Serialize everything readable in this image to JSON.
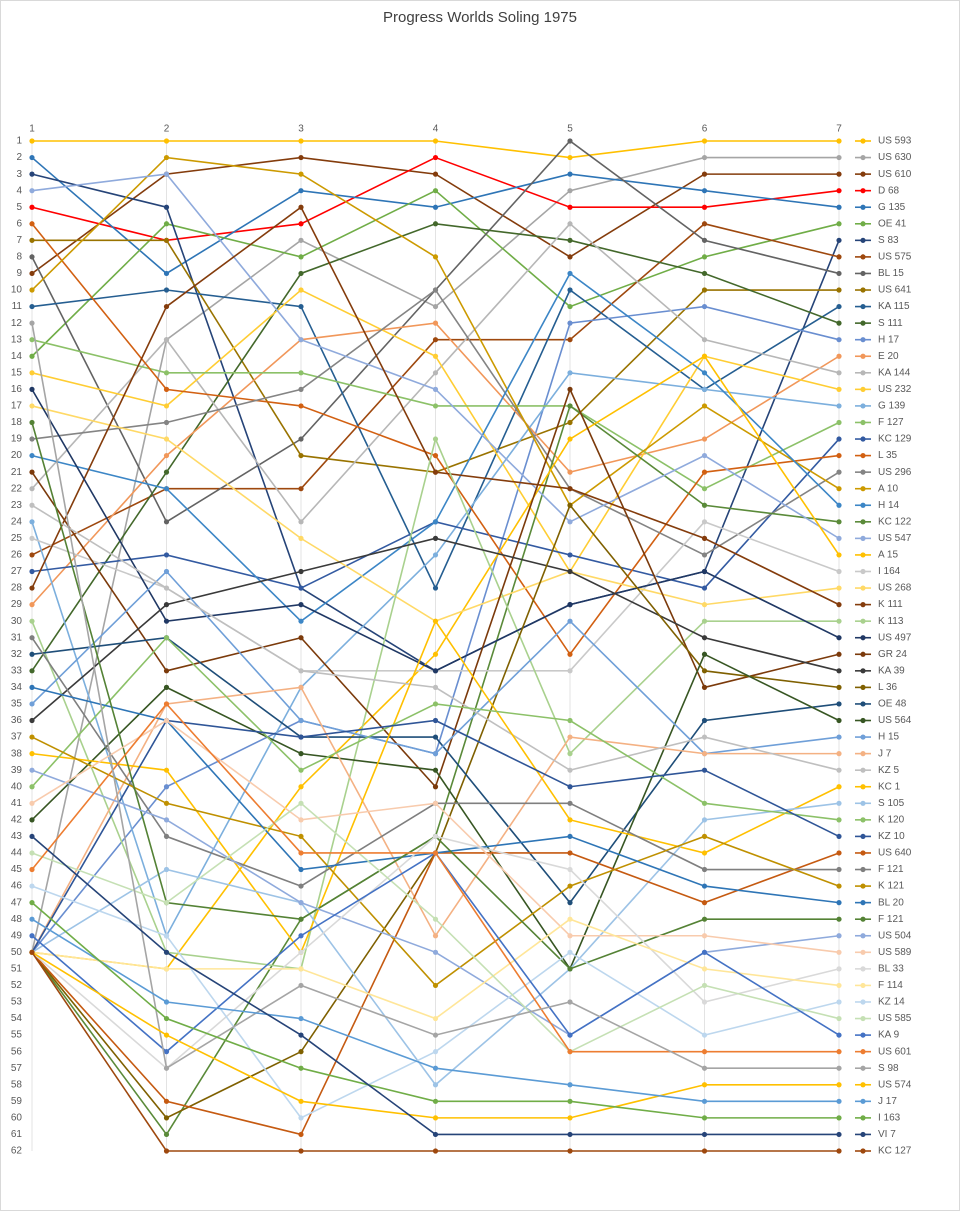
{
  "chart_data": {
    "type": "bump",
    "title": "Progress Worlds Soling 1975",
    "categories": [
      "1",
      "2",
      "3",
      "4",
      "5",
      "6",
      "7"
    ],
    "ylim": [
      62,
      1
    ],
    "yticks": [
      1,
      2,
      3,
      4,
      5,
      6,
      7,
      8,
      9,
      10,
      11,
      12,
      13,
      14,
      15,
      16,
      17,
      18,
      19,
      20,
      21,
      22,
      23,
      24,
      25,
      26,
      27,
      28,
      29,
      30,
      31,
      32,
      33,
      34,
      35,
      36,
      37,
      38,
      39,
      40,
      41,
      42,
      43,
      44,
      45,
      46,
      47,
      48,
      49,
      50,
      51,
      52,
      53,
      54,
      55,
      56,
      57,
      58,
      59,
      60,
      61,
      62
    ],
    "grid": true,
    "series": [
      {
        "name": "US 593",
        "color": "#FFC000",
        "values": [
          1,
          1,
          1,
          1,
          2,
          1,
          1
        ]
      },
      {
        "name": "US 630",
        "color": "#A5A5A5",
        "values": [
          50,
          13,
          7,
          11,
          4,
          2,
          2
        ]
      },
      {
        "name": "US 610",
        "color": "#843C0C",
        "values": [
          9,
          3,
          2,
          3,
          8,
          3,
          3
        ]
      },
      {
        "name": "D 68",
        "color": "#FF0000",
        "values": [
          5,
          7,
          6,
          2,
          5,
          5,
          4
        ]
      },
      {
        "name": "G 135",
        "color": "#2E75B6",
        "values": [
          2,
          9,
          4,
          5,
          3,
          4,
          5
        ]
      },
      {
        "name": "OE 41",
        "color": "#70AD47",
        "values": [
          14,
          6,
          8,
          4,
          11,
          8,
          6
        ]
      },
      {
        "name": "S 83",
        "color": "#264478",
        "values": [
          3,
          5,
          28,
          33,
          29,
          27,
          7
        ]
      },
      {
        "name": "US 575",
        "color": "#9E480E",
        "values": [
          26,
          22,
          22,
          13,
          13,
          6,
          8
        ]
      },
      {
        "name": "BL 15",
        "color": "#636363",
        "values": [
          8,
          24,
          19,
          10,
          1,
          7,
          9
        ]
      },
      {
        "name": "US 641",
        "color": "#997300",
        "values": [
          7,
          7,
          20,
          21,
          18,
          10,
          10
        ]
      },
      {
        "name": "KA 115",
        "color": "#255E91",
        "values": [
          11,
          10,
          11,
          28,
          10,
          16,
          11
        ]
      },
      {
        "name": "S 111",
        "color": "#43682B",
        "values": [
          33,
          21,
          9,
          6,
          7,
          9,
          12
        ]
      },
      {
        "name": "H 17",
        "color": "#698ED0",
        "values": [
          50,
          40,
          36,
          38,
          12,
          11,
          13
        ]
      },
      {
        "name": "E 20",
        "color": "#F1975A",
        "values": [
          29,
          20,
          13,
          12,
          21,
          19,
          14
        ]
      },
      {
        "name": "KA 144",
        "color": "#B7B7B7",
        "values": [
          22,
          13,
          24,
          15,
          6,
          13,
          15
        ]
      },
      {
        "name": "US 232",
        "color": "#FFCD33",
        "values": [
          15,
          17,
          10,
          14,
          27,
          14,
          16
        ]
      },
      {
        "name": "G 139",
        "color": "#7CAFDD",
        "values": [
          24,
          49,
          34,
          26,
          15,
          16,
          17
        ]
      },
      {
        "name": "F 127",
        "color": "#8CC168",
        "values": [
          13,
          15,
          15,
          17,
          17,
          22,
          18
        ]
      },
      {
        "name": "KC 129",
        "color": "#335AA1",
        "values": [
          27,
          26,
          28,
          24,
          26,
          28,
          19
        ]
      },
      {
        "name": "L 35",
        "color": "#D26012",
        "values": [
          6,
          16,
          17,
          20,
          32,
          21,
          20
        ]
      },
      {
        "name": "US 296",
        "color": "#848484",
        "values": [
          19,
          18,
          16,
          10,
          22,
          26,
          21
        ]
      },
      {
        "name": "A 10",
        "color": "#CC9A00",
        "values": [
          10,
          2,
          3,
          8,
          23,
          17,
          22
        ]
      },
      {
        "name": "H 14",
        "color": "#3C86C6",
        "values": [
          20,
          22,
          30,
          24,
          9,
          15,
          23
        ]
      },
      {
        "name": "KC 122",
        "color": "#5A8A39",
        "values": [
          50,
          61,
          48,
          43,
          17,
          23,
          24
        ]
      },
      {
        "name": "US 547",
        "color": "#8FAADC",
        "values": [
          4,
          3,
          13,
          16,
          24,
          20,
          25
        ]
      },
      {
        "name": "A 15",
        "color": "#FFC000",
        "values": [
          50,
          51,
          40,
          32,
          19,
          14,
          26
        ]
      },
      {
        "name": "I 164",
        "color": "#C9C9C9",
        "values": [
          25,
          28,
          33,
          33,
          33,
          24,
          27
        ]
      },
      {
        "name": "US 268",
        "color": "#FFD966",
        "values": [
          17,
          19,
          25,
          30,
          27,
          29,
          28
        ]
      },
      {
        "name": "K 111",
        "color": "#843C0C",
        "values": [
          28,
          11,
          5,
          21,
          22,
          25,
          29
        ]
      },
      {
        "name": "K 113",
        "color": "#A9D18E",
        "values": [
          30,
          50,
          51,
          19,
          38,
          30,
          30
        ]
      },
      {
        "name": "US 497",
        "color": "#203864",
        "values": [
          16,
          30,
          29,
          33,
          29,
          27,
          31
        ]
      },
      {
        "name": "GR 24",
        "color": "#7B3A0B",
        "values": [
          21,
          33,
          31,
          40,
          16,
          34,
          32
        ]
      },
      {
        "name": "KA 39",
        "color": "#3A3A3A",
        "values": [
          36,
          29,
          27,
          25,
          27,
          31,
          33
        ]
      },
      {
        "name": "L 36",
        "color": "#7F6000",
        "values": [
          50,
          60,
          56,
          44,
          23,
          33,
          34
        ]
      },
      {
        "name": "OE 48",
        "color": "#1F4E79",
        "values": [
          32,
          31,
          37,
          37,
          47,
          36,
          35
        ]
      },
      {
        "name": "US 564",
        "color": "#375623",
        "values": [
          42,
          34,
          38,
          39,
          51,
          32,
          36
        ]
      },
      {
        "name": "H 15",
        "color": "#6F9FD8",
        "values": [
          35,
          27,
          36,
          38,
          30,
          38,
          37
        ]
      },
      {
        "name": "J 7",
        "color": "#F4B183",
        "values": [
          50,
          35,
          34,
          49,
          37,
          38,
          38
        ]
      },
      {
        "name": "KZ 5",
        "color": "#BFBFBF",
        "values": [
          23,
          28,
          33,
          34,
          39,
          37,
          39
        ]
      },
      {
        "name": "KC 1",
        "color": "#FFC000",
        "values": [
          38,
          39,
          50,
          30,
          42,
          44,
          40
        ]
      },
      {
        "name": "S 105",
        "color": "#9DC3E6",
        "values": [
          50,
          45,
          47,
          58,
          51,
          42,
          41
        ]
      },
      {
        "name": "K 120",
        "color": "#8CC168",
        "values": [
          40,
          31,
          39,
          35,
          36,
          41,
          42
        ]
      },
      {
        "name": "KZ 10",
        "color": "#2F5597",
        "values": [
          50,
          36,
          37,
          36,
          40,
          39,
          43
        ]
      },
      {
        "name": "US 640",
        "color": "#C55A11",
        "values": [
          50,
          59,
          61,
          44,
          44,
          47,
          44
        ]
      },
      {
        "name": "F 121",
        "color": "#7F7F7F",
        "values": [
          31,
          43,
          46,
          41,
          41,
          45,
          45
        ]
      },
      {
        "name": "K 121",
        "color": "#BF9000",
        "values": [
          37,
          41,
          43,
          52,
          46,
          43,
          46
        ]
      },
      {
        "name": "BL 20",
        "color": "#2E75B6",
        "values": [
          34,
          36,
          45,
          44,
          43,
          46,
          47
        ]
      },
      {
        "name": "F 121",
        "color": "#548235",
        "values": [
          18,
          47,
          48,
          43,
          51,
          48,
          48
        ]
      },
      {
        "name": "US 504",
        "color": "#8FAADC",
        "values": [
          39,
          42,
          47,
          50,
          55,
          50,
          49
        ]
      },
      {
        "name": "US 589",
        "color": "#F8CBAD",
        "values": [
          41,
          36,
          42,
          41,
          49,
          49,
          50
        ]
      },
      {
        "name": "BL 33",
        "color": "#D9D9D9",
        "values": [
          50,
          57,
          50,
          43,
          45,
          53,
          51
        ]
      },
      {
        "name": "F 114",
        "color": "#FFE699",
        "values": [
          50,
          51,
          51,
          54,
          48,
          51,
          52
        ]
      },
      {
        "name": "KZ 14",
        "color": "#BDD7EE",
        "values": [
          46,
          49,
          60,
          56,
          50,
          55,
          53
        ]
      },
      {
        "name": "US 585",
        "color": "#C5E0B4",
        "values": [
          44,
          47,
          41,
          48,
          56,
          52,
          54
        ]
      },
      {
        "name": "KA 9",
        "color": "#4472C4",
        "values": [
          49,
          56,
          49,
          44,
          55,
          50,
          55
        ]
      },
      {
        "name": "US 601",
        "color": "#ED7D31",
        "values": [
          45,
          35,
          44,
          44,
          56,
          56,
          56
        ]
      },
      {
        "name": "S 98",
        "color": "#A5A5A5",
        "values": [
          12,
          57,
          52,
          55,
          53,
          57,
          57
        ]
      },
      {
        "name": "US 574",
        "color": "#FFC000",
        "values": [
          50,
          55,
          59,
          60,
          60,
          58,
          58
        ]
      },
      {
        "name": "J 17",
        "color": "#5B9BD5",
        "values": [
          48,
          53,
          54,
          57,
          58,
          59,
          59
        ]
      },
      {
        "name": "I 163",
        "color": "#70AD47",
        "values": [
          47,
          54,
          57,
          59,
          59,
          60,
          60
        ]
      },
      {
        "name": "VI 7",
        "color": "#264478",
        "values": [
          43,
          50,
          55,
          61,
          61,
          61,
          61
        ]
      },
      {
        "name": "KC 127",
        "color": "#9E480E",
        "values": [
          50,
          62,
          62,
          62,
          62,
          62,
          62
        ]
      }
    ]
  }
}
